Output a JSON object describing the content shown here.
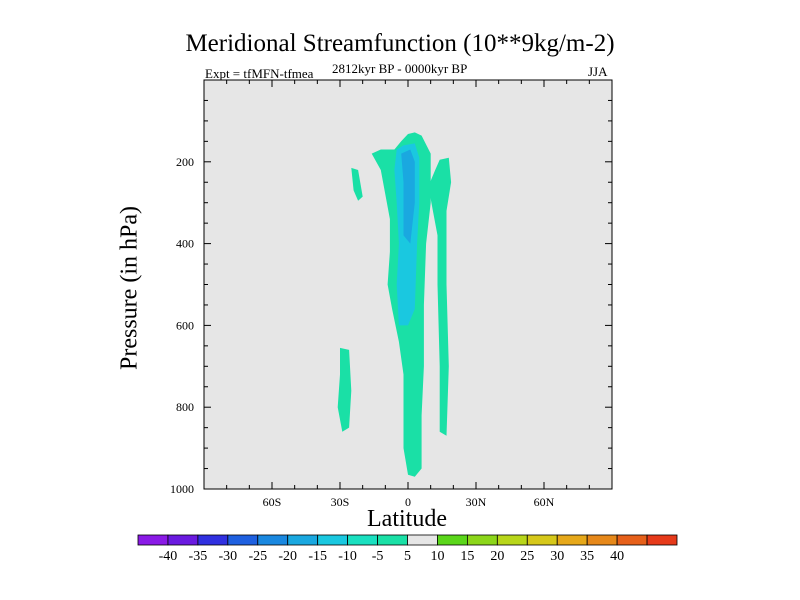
{
  "chart_data": {
    "type": "contour",
    "title": "Meridional Streamfunction (10**9kg/m-2)",
    "left_label": "Expt = tfMFN-tfmea",
    "center_label": "2812kyr BP - 0000kyr BP",
    "right_label": "JJA",
    "xlabel": "Latitude",
    "ylabel": "Pressure (in hPa)",
    "xlim": [
      -90,
      90
    ],
    "ylim": [
      1000,
      0
    ],
    "x_ticks": [
      {
        "value": -60,
        "label": "60S"
      },
      {
        "value": -30,
        "label": "30S"
      },
      {
        "value": 0,
        "label": "0"
      },
      {
        "value": 30,
        "label": "30N"
      },
      {
        "value": 60,
        "label": "60N"
      }
    ],
    "y_ticks": [
      {
        "value": 200,
        "label": "200"
      },
      {
        "value": 400,
        "label": "400"
      },
      {
        "value": 600,
        "label": "600"
      },
      {
        "value": 800,
        "label": "800"
      },
      {
        "value": 1000,
        "label": "1000"
      }
    ],
    "background_color": "#e6e6e6",
    "colorbar": {
      "levels": [
        -40,
        -35,
        -30,
        -25,
        -20,
        -15,
        -10,
        -5,
        5,
        10,
        15,
        20,
        25,
        30,
        35,
        40
      ],
      "labels": [
        "-40",
        "-35",
        "-30",
        "-25",
        "-20",
        "-15",
        "-10",
        "-5",
        "5",
        "10",
        "15",
        "20",
        "25",
        "30",
        "35",
        "40"
      ],
      "colors": [
        "#8a1ae6",
        "#6a1ae0",
        "#3030e0",
        "#1e60e0",
        "#1a88e0",
        "#1aa8e0",
        "#1ac8e0",
        "#1ae0c0",
        "#1ae0a6",
        "#e6e6e6",
        "#5ad61a",
        "#8cd61a",
        "#b8d61a",
        "#d6c81a",
        "#e6a81a",
        "#e6881a",
        "#e6601a",
        "#e63a1a"
      ]
    },
    "contour_regions": [
      {
        "level": "-10 to -5",
        "color": "#1ae0a6",
        "points": [
          [
            -6,
            170
          ],
          [
            -3,
            150
          ],
          [
            0,
            132
          ],
          [
            3,
            128
          ],
          [
            6,
            136
          ],
          [
            10,
            180
          ],
          [
            10,
            300
          ],
          [
            8,
            400
          ],
          [
            7,
            550
          ],
          [
            7,
            700
          ],
          [
            6,
            820
          ],
          [
            6,
            950
          ],
          [
            3,
            970
          ],
          [
            0,
            965
          ],
          [
            -2,
            900
          ],
          [
            -2,
            720
          ],
          [
            -4,
            640
          ],
          [
            -7,
            560
          ],
          [
            -9,
            500
          ],
          [
            -8,
            420
          ],
          [
            -8,
            340
          ],
          [
            -12,
            220
          ],
          [
            -16,
            180
          ],
          [
            -12,
            170
          ]
        ]
      },
      {
        "level": "-15 to -10",
        "color": "#1ac8e0",
        "points": [
          [
            -5,
            170
          ],
          [
            -2,
            160
          ],
          [
            3,
            155
          ],
          [
            5,
            190
          ],
          [
            5,
            300
          ],
          [
            4,
            400
          ],
          [
            3,
            560
          ],
          [
            0,
            600
          ],
          [
            -4,
            600
          ],
          [
            -5,
            500
          ],
          [
            -4,
            400
          ],
          [
            -5,
            300
          ],
          [
            -6,
            220
          ]
        ]
      },
      {
        "level": "-20 to -15",
        "color": "#1aa8e0",
        "points": [
          [
            -3,
            180
          ],
          [
            1,
            170
          ],
          [
            3,
            200
          ],
          [
            3,
            300
          ],
          [
            1,
            400
          ],
          [
            -2,
            380
          ],
          [
            -2,
            250
          ]
        ]
      },
      {
        "level": "-10 to -5",
        "color": "#1ae0a6",
        "points": [
          [
            -25,
            215
          ],
          [
            -22,
            220
          ],
          [
            -20,
            285
          ],
          [
            -22,
            295
          ],
          [
            -24,
            270
          ]
        ]
      },
      {
        "level": "-10 to -5",
        "color": "#1ae0a6",
        "points": [
          [
            -30,
            655
          ],
          [
            -26,
            660
          ],
          [
            -25,
            760
          ],
          [
            -26,
            850
          ],
          [
            -29,
            860
          ],
          [
            -31,
            800
          ],
          [
            -30,
            720
          ]
        ]
      },
      {
        "level": "-10 to -5",
        "color": "#1ae0a6",
        "points": [
          [
            14,
            195
          ],
          [
            18,
            190
          ],
          [
            19,
            250
          ],
          [
            17,
            320
          ],
          [
            17,
            500
          ],
          [
            18,
            700
          ],
          [
            17,
            870
          ],
          [
            14,
            860
          ],
          [
            14,
            700
          ],
          [
            13,
            500
          ],
          [
            13,
            380
          ],
          [
            11,
            320
          ],
          [
            9,
            260
          ],
          [
            12,
            220
          ]
        ]
      }
    ]
  }
}
